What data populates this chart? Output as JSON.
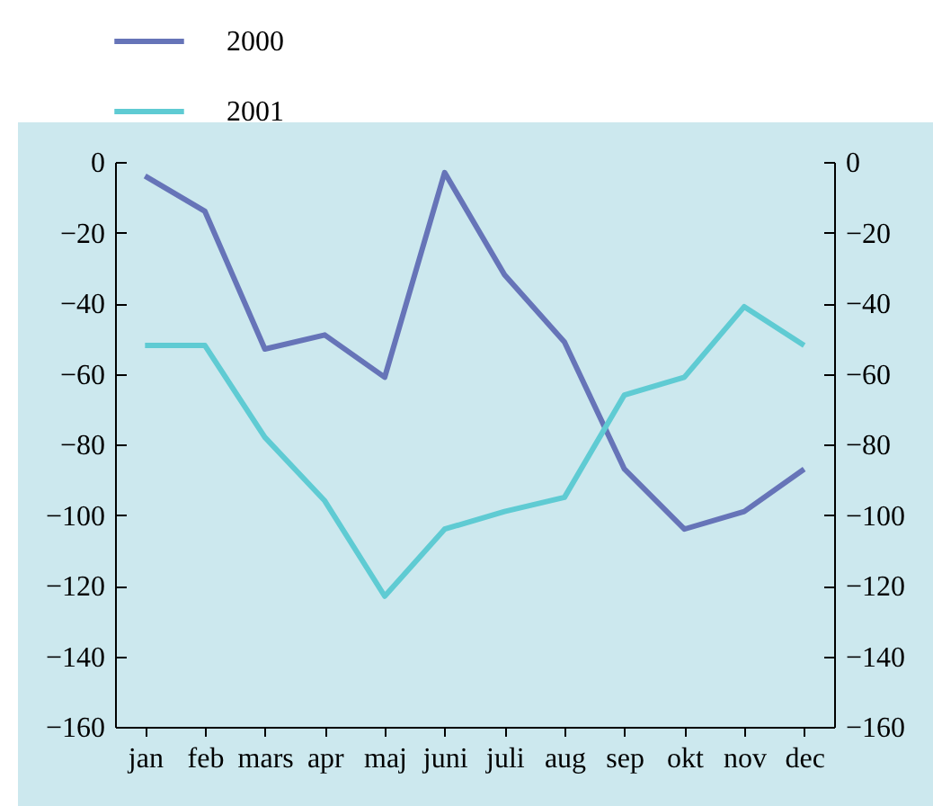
{
  "chart_data": {
    "type": "line",
    "categories": [
      "jan",
      "feb",
      "mars",
      "apr",
      "maj",
      "juni",
      "juli",
      "aug",
      "sep",
      "okt",
      "nov",
      "dec"
    ],
    "series": [
      {
        "name": "2000",
        "color": "#6674b8",
        "values": [
          -4,
          -14,
          -53,
          -49,
          -61,
          -3,
          -32,
          -51,
          -87,
          -104,
          -99,
          -87
        ]
      },
      {
        "name": "2001",
        "color": "#5fcbd3",
        "values": [
          -52,
          -52,
          -78,
          -96,
          -123,
          -104,
          -99,
          -95,
          -66,
          -61,
          -41,
          -52
        ]
      }
    ],
    "ylim": [
      -160,
      0
    ],
    "yticks": [
      -160,
      -140,
      -120,
      -100,
      -80,
      -60,
      -40,
      -20,
      0
    ],
    "y2lim": [
      -160,
      0
    ],
    "y2ticks": [
      -160,
      -140,
      -120,
      -100,
      -80,
      -60,
      -40,
      -20,
      0
    ],
    "legend": "top left",
    "grid": false,
    "marker": "none",
    "line_style": "solid"
  }
}
